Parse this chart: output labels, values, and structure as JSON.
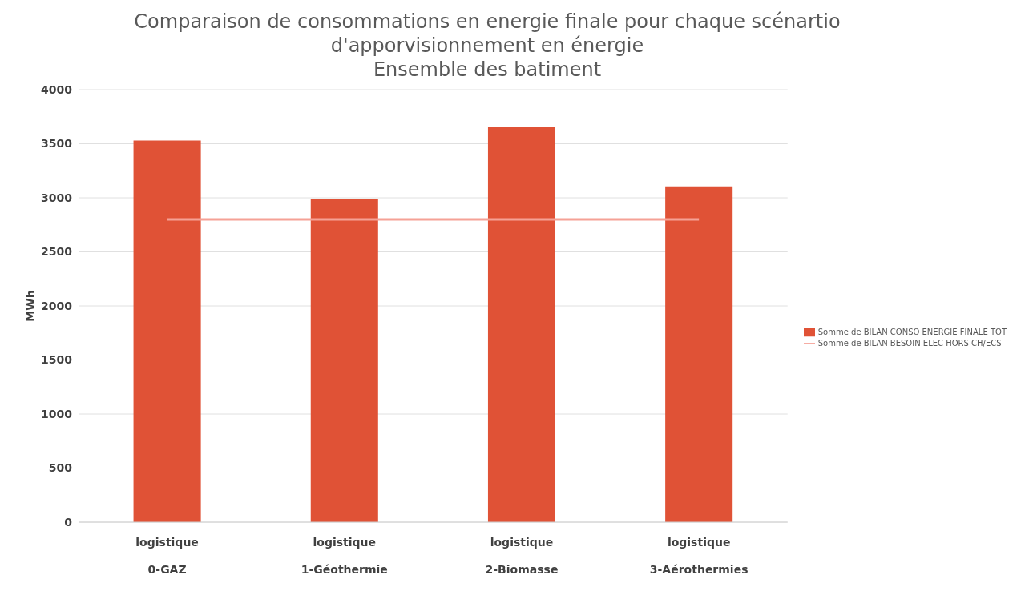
{
  "chart_data": {
    "type": "bar",
    "title": "Comparaison de consommations en energie finale pour chaque scénartio d'apporvisionnement en énergie",
    "subtitle": "Ensemble des batiment",
    "ylabel": "MWh",
    "categories": [
      "logistique\n0-GAZ",
      "logistique\n1-Géothermie",
      "logistique\n2-Biomasse",
      "logistique\n3-Aérothermies"
    ],
    "series": [
      {
        "name": "Somme de BILAN CONSO ENERGIE FINALE TOT",
        "color": "#e05236",
        "values": [
          3530,
          2990,
          3655,
          3105
        ]
      },
      {
        "name": "Somme de BILAN BESOIN ELEC HORS CH/ECS",
        "type": "line",
        "color": "#f5a196",
        "values": [
          2800,
          2800,
          2800,
          2800
        ]
      }
    ],
    "ylim": [
      0,
      4000
    ],
    "yticks": [
      0,
      500,
      1000,
      1500,
      2000,
      2500,
      3000,
      3500,
      4000
    ],
    "grid": "y",
    "legend": "right",
    "marker": "none"
  }
}
